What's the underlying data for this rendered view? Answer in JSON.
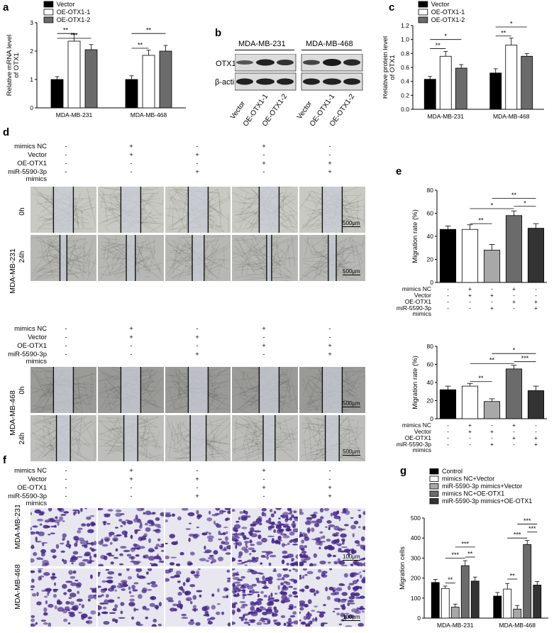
{
  "panels": {
    "a": "a",
    "b": "b",
    "c": "c",
    "d": "d",
    "e": "e",
    "f": "f",
    "g": "g"
  },
  "legend_abc": [
    "Vector",
    "OE-OTX1-1",
    "OE-OTX1-2"
  ],
  "legend_g": [
    "Control",
    "mimics NC+Vector",
    "miR-5590-3p mimics+Vector",
    "mimics NC+OE-OTX1",
    "miR-5590-3p mimics+OE-OTX1"
  ],
  "cell_lines": [
    "MDA-MB-231",
    "MDA-MB-468"
  ],
  "time_points": [
    "0h",
    "24h"
  ],
  "scale": "500μm",
  "scale_f": "100μm",
  "blot": {
    "bands": [
      "OTX1",
      "β-actin"
    ],
    "lanes": [
      "Vector",
      "OE-OTX1-1",
      "OE-OTX1-2",
      "Vector",
      "OE-OTX1-1",
      "OE-OTX1-2"
    ]
  },
  "conditions": {
    "rows": [
      "mimics NC",
      "Vector",
      "OE-OTX1",
      "miR-5590-3p",
      "mimics"
    ],
    "signs": [
      [
        "-",
        "+",
        "-",
        "+",
        "-"
      ],
      [
        "-",
        "+",
        "+",
        "-",
        "-"
      ],
      [
        "-",
        "-",
        "-",
        "+",
        "+"
      ],
      [
        "-",
        "-",
        "+",
        "-",
        "+"
      ]
    ]
  },
  "chart_data": [
    {
      "id": "a",
      "type": "bar",
      "ylabel": "Relative mRNA level\nof OTX1",
      "ylim": [
        0,
        3
      ],
      "yticks": [
        0,
        1,
        2,
        3
      ],
      "categories": [
        "MDA-MB-231",
        "MDA-MB-468"
      ],
      "series": [
        {
          "name": "Vector",
          "values": [
            1.0,
            1.0
          ],
          "errors": [
            0.1,
            0.13
          ],
          "color": "#000000"
        },
        {
          "name": "OE-OTX1-1",
          "values": [
            2.35,
            1.85
          ],
          "errors": [
            0.25,
            0.18
          ],
          "color": "#ffffff"
        },
        {
          "name": "OE-OTX1-2",
          "values": [
            2.05,
            2.0
          ],
          "errors": [
            0.18,
            0.2
          ],
          "color": "#6b6b6b"
        }
      ],
      "significance": [
        {
          "group": 0,
          "from": 0,
          "to": 1,
          "label": "**",
          "y": 2.62
        },
        {
          "group": 0,
          "from": 0,
          "to": 2,
          "label": "***",
          "y": 2.45
        },
        {
          "group": 1,
          "from": 0,
          "to": 1,
          "label": "**",
          "y": 2.1
        },
        {
          "group": 1,
          "from": 0,
          "to": 2,
          "label": "**",
          "y": 2.62
        }
      ]
    },
    {
      "id": "c",
      "type": "bar",
      "ylabel": "Relative protein level\nof OTX1",
      "ylim": [
        0,
        1.2
      ],
      "yticks": [
        0.0,
        0.2,
        0.4,
        0.6,
        0.8,
        1.0,
        1.2
      ],
      "categories": [
        "MDA-MB-231",
        "MDA-MB-468"
      ],
      "series": [
        {
          "name": "Vector",
          "values": [
            0.43,
            0.52
          ],
          "errors": [
            0.04,
            0.06
          ],
          "color": "#000000"
        },
        {
          "name": "OE-OTX1-1",
          "values": [
            0.76,
            0.92
          ],
          "errors": [
            0.07,
            0.1
          ],
          "color": "#ffffff"
        },
        {
          "name": "OE-OTX1-2",
          "values": [
            0.59,
            0.76
          ],
          "errors": [
            0.05,
            0.04
          ],
          "color": "#6b6b6b"
        }
      ],
      "significance": [
        {
          "group": 0,
          "from": 0,
          "to": 1,
          "label": "**",
          "y": 0.87
        },
        {
          "group": 0,
          "from": 0,
          "to": 2,
          "label": "*",
          "y": 1.0
        },
        {
          "group": 1,
          "from": 0,
          "to": 1,
          "label": "**",
          "y": 1.05
        },
        {
          "group": 1,
          "from": 0,
          "to": 2,
          "label": "*",
          "y": 1.18
        }
      ]
    },
    {
      "id": "e1",
      "type": "bar",
      "ylabel": "Migration rate (%)",
      "ylim": [
        0,
        80
      ],
      "yticks": [
        0,
        20,
        40,
        60,
        80
      ],
      "categories": [
        "1",
        "2",
        "3",
        "4",
        "5"
      ],
      "values": [
        46,
        46,
        28,
        58,
        47
      ],
      "errors": [
        3,
        4,
        5,
        4,
        4
      ],
      "colors": [
        "#000000",
        "#ffffff",
        "#a8a8a8",
        "#6b6b6b",
        "#333333"
      ],
      "significance": [
        {
          "from": 1,
          "to": 2,
          "label": "**",
          "y": 51
        },
        {
          "from": 1,
          "to": 3,
          "label": "*",
          "y": 64
        },
        {
          "from": 2,
          "to": 4,
          "label": "**",
          "y": 73
        },
        {
          "from": 3,
          "to": 4,
          "label": "*",
          "y": 66
        }
      ]
    },
    {
      "id": "e2",
      "type": "bar",
      "ylabel": "Migration rate (%)",
      "ylim": [
        0,
        80
      ],
      "yticks": [
        0,
        20,
        40,
        60,
        80
      ],
      "categories": [
        "1",
        "2",
        "3",
        "4",
        "5"
      ],
      "values": [
        32,
        36,
        19,
        55,
        31
      ],
      "errors": [
        4,
        3,
        3,
        4,
        5
      ],
      "colors": [
        "#000000",
        "#ffffff",
        "#a8a8a8",
        "#6b6b6b",
        "#333333"
      ],
      "significance": [
        {
          "from": 1,
          "to": 2,
          "label": "**",
          "y": 41
        },
        {
          "from": 1,
          "to": 3,
          "label": "**",
          "y": 61
        },
        {
          "from": 2,
          "to": 4,
          "label": "*",
          "y": 72
        },
        {
          "from": 3,
          "to": 4,
          "label": "***",
          "y": 63
        }
      ]
    },
    {
      "id": "g",
      "type": "bar",
      "ylabel": "Migration cells",
      "ylim": [
        0,
        500
      ],
      "yticks": [
        0,
        100,
        200,
        300,
        400,
        500
      ],
      "categories": [
        "MDA-MB-231",
        "MDA-MB-468"
      ],
      "series": [
        {
          "name": "Control",
          "values": [
            178,
            110
          ],
          "errors": [
            15,
            18
          ],
          "color": "#000000"
        },
        {
          "name": "mimics NC+Vector",
          "values": [
            148,
            145
          ],
          "errors": [
            12,
            28
          ],
          "color": "#ffffff"
        },
        {
          "name": "miR-5590-3p mimics+Vector",
          "values": [
            55,
            45
          ],
          "errors": [
            15,
            18
          ],
          "color": "#a8a8a8"
        },
        {
          "name": "mimics NC+OE-OTX1",
          "values": [
            262,
            368
          ],
          "errors": [
            25,
            20
          ],
          "color": "#6b6b6b"
        },
        {
          "name": "miR-5590-3p mimics+OE-OTX1",
          "values": [
            185,
            165
          ],
          "errors": [
            20,
            18
          ],
          "color": "#333333"
        }
      ],
      "significance": [
        {
          "group": 0,
          "from": 1,
          "to": 2,
          "label": "**",
          "y": 175
        },
        {
          "group": 0,
          "from": 1,
          "to": 3,
          "label": "***",
          "y": 300
        },
        {
          "group": 0,
          "from": 2,
          "to": 4,
          "label": "***",
          "y": 355
        },
        {
          "group": 0,
          "from": 3,
          "to": 4,
          "label": "**",
          "y": 305
        },
        {
          "group": 1,
          "from": 1,
          "to": 2,
          "label": "**",
          "y": 195
        },
        {
          "group": 1,
          "from": 1,
          "to": 3,
          "label": "***",
          "y": 400
        },
        {
          "group": 1,
          "from": 2,
          "to": 4,
          "label": "***",
          "y": 470
        },
        {
          "group": 1,
          "from": 3,
          "to": 4,
          "label": "***",
          "y": 430
        }
      ]
    }
  ]
}
